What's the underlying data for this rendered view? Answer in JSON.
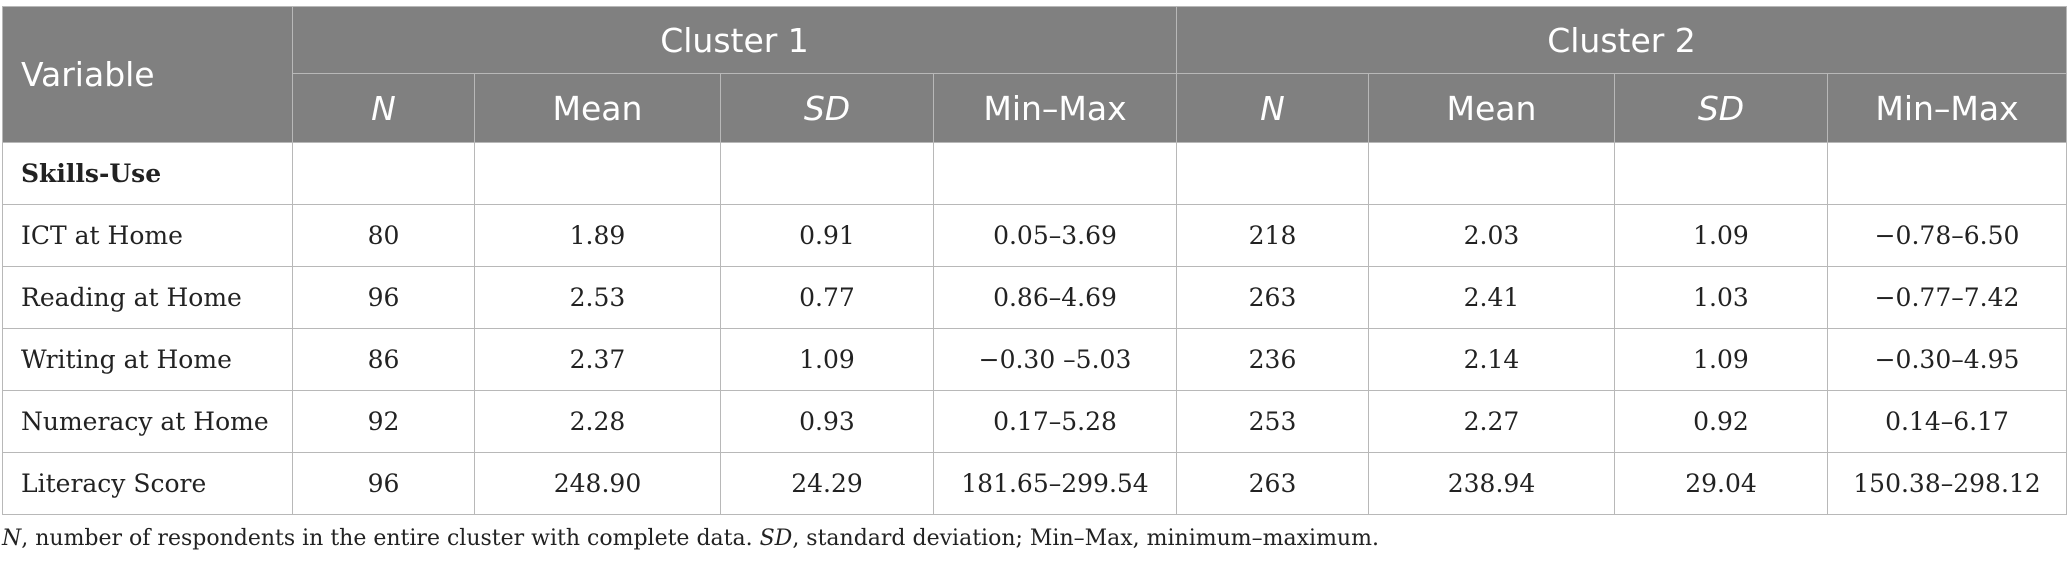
{
  "header": {
    "variable": "Variable",
    "cluster1": "Cluster 1",
    "cluster2": "Cluster 2",
    "subcols": [
      "N",
      "Mean",
      "SD",
      "Min–Max",
      "N",
      "Mean",
      "SD",
      "Min–Max"
    ]
  },
  "rows": [
    {
      "label": "Skills-Use",
      "cells": [
        "",
        "",
        "",
        "",
        "",
        "",
        "",
        ""
      ]
    },
    {
      "label": "ICT at Home",
      "cells": [
        "80",
        "1.89",
        "0.91",
        "0.05–3.69",
        "218",
        "2.03",
        "1.09",
        "−0.78–6.50"
      ]
    },
    {
      "label": "Reading at Home",
      "cells": [
        "96",
        "2.53",
        "0.77",
        "0.86–4.69",
        "263",
        "2.41",
        "1.03",
        "−0.77–7.42"
      ]
    },
    {
      "label": "Writing at Home",
      "cells": [
        "86",
        "2.37",
        "1.09",
        "−0.30 –5.03",
        "236",
        "2.14",
        "1.09",
        "−0.30–4.95"
      ]
    },
    {
      "label": "Numeracy at Home",
      "cells": [
        "92",
        "2.28",
        "0.93",
        "0.17–5.28",
        "253",
        "2.27",
        "0.92",
        "0.14–6.17"
      ]
    },
    {
      "label": "Literacy Score",
      "cells": [
        "96",
        "248.90",
        "24.29",
        "181.65–299.54",
        "263",
        "238.94",
        "29.04",
        "150.38–298.12"
      ]
    }
  ],
  "footnote": {
    "n_term": "N",
    "n_text": ", number of respondents in the entire cluster with complete data. ",
    "sd_term": "SD",
    "sd_text": ", standard deviation; Min–Max, minimum–maximum."
  }
}
